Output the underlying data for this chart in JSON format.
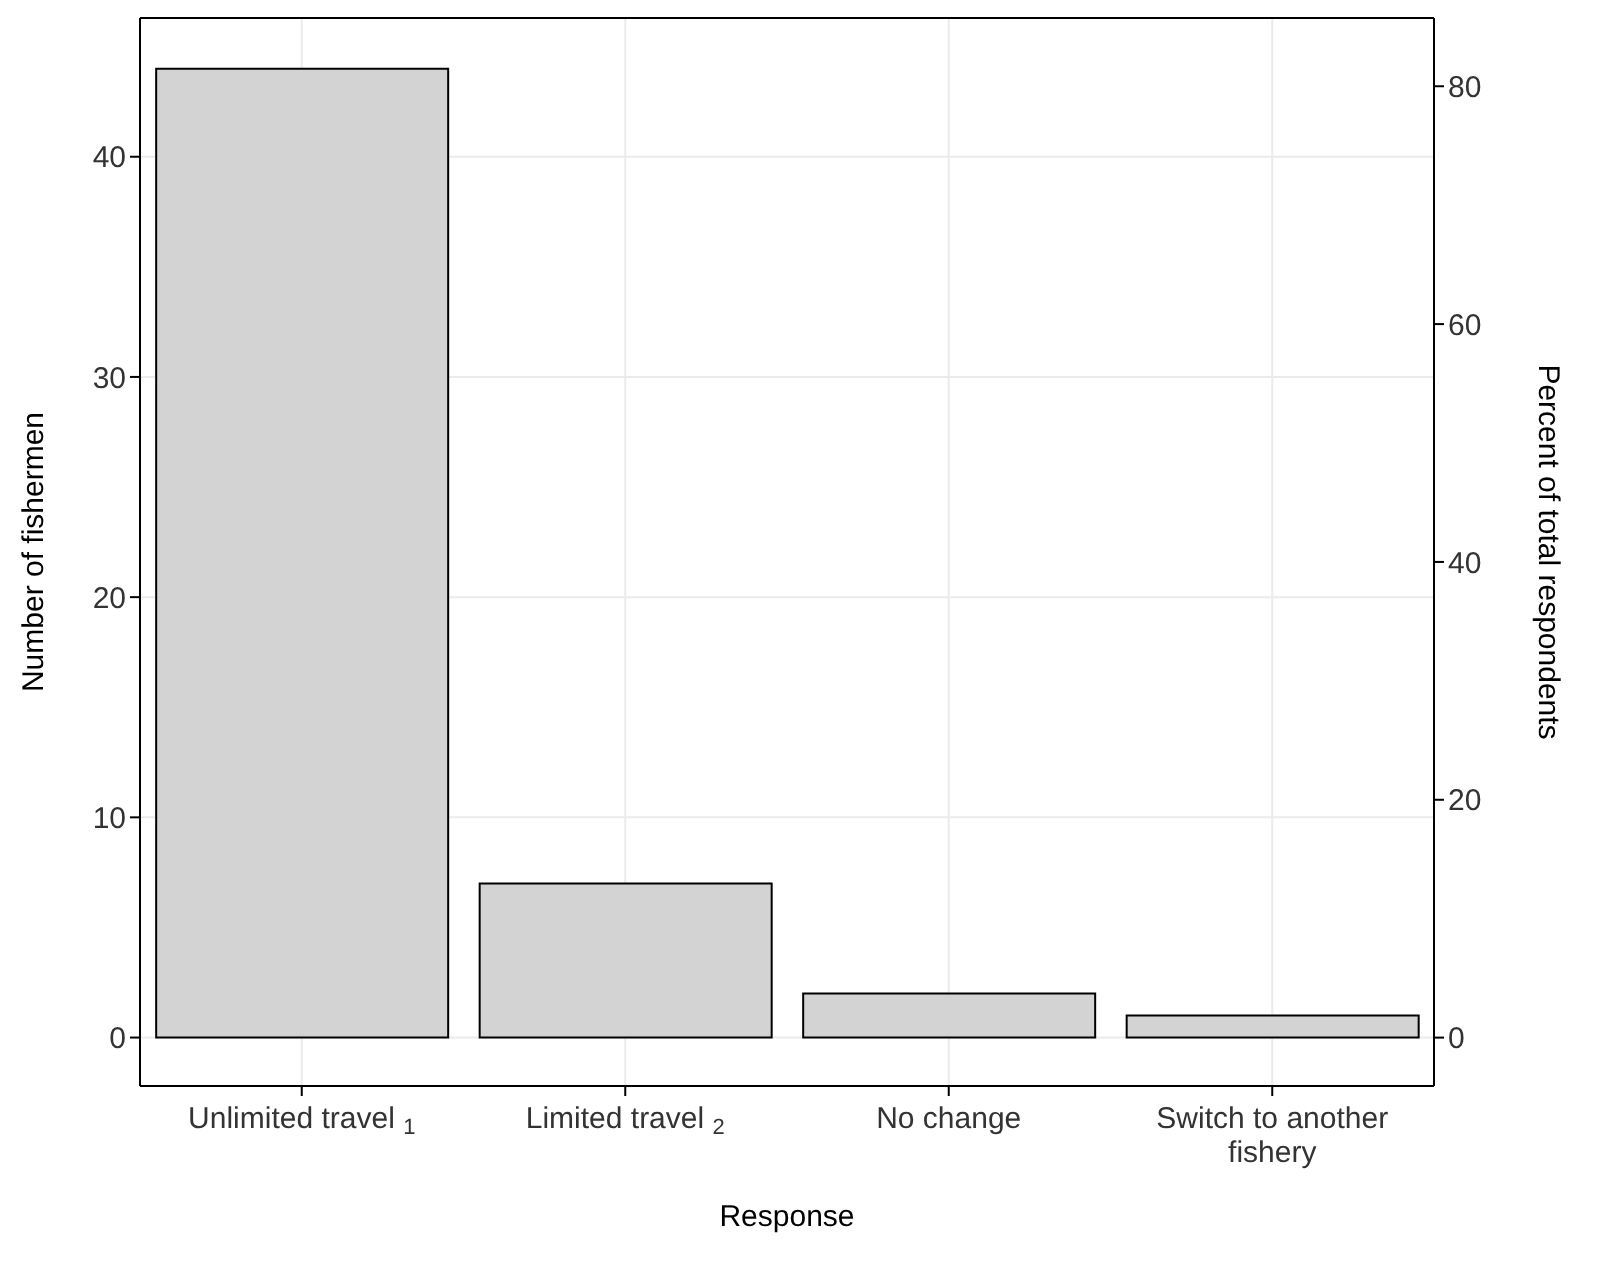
{
  "chart_data": {
    "type": "bar",
    "xlabel": "Response",
    "ylabel": "Number of fishermen",
    "y2label": "Percent of total respondents",
    "categories": [
      "Unlimited travel $_{1}$",
      "Limited travel $_{2}$",
      "No change",
      "Switch to another fishery"
    ],
    "values": [
      44,
      7,
      2,
      1
    ],
    "color": "#d3d3d3",
    "ylim": [
      -2.2,
      46.3
    ],
    "yticks": [
      0,
      10,
      20,
      30,
      40
    ],
    "y2lim": [
      -4.07,
      85.74
    ],
    "y2ticks": [
      0,
      20,
      40,
      60,
      80
    ],
    "grid": true
  }
}
